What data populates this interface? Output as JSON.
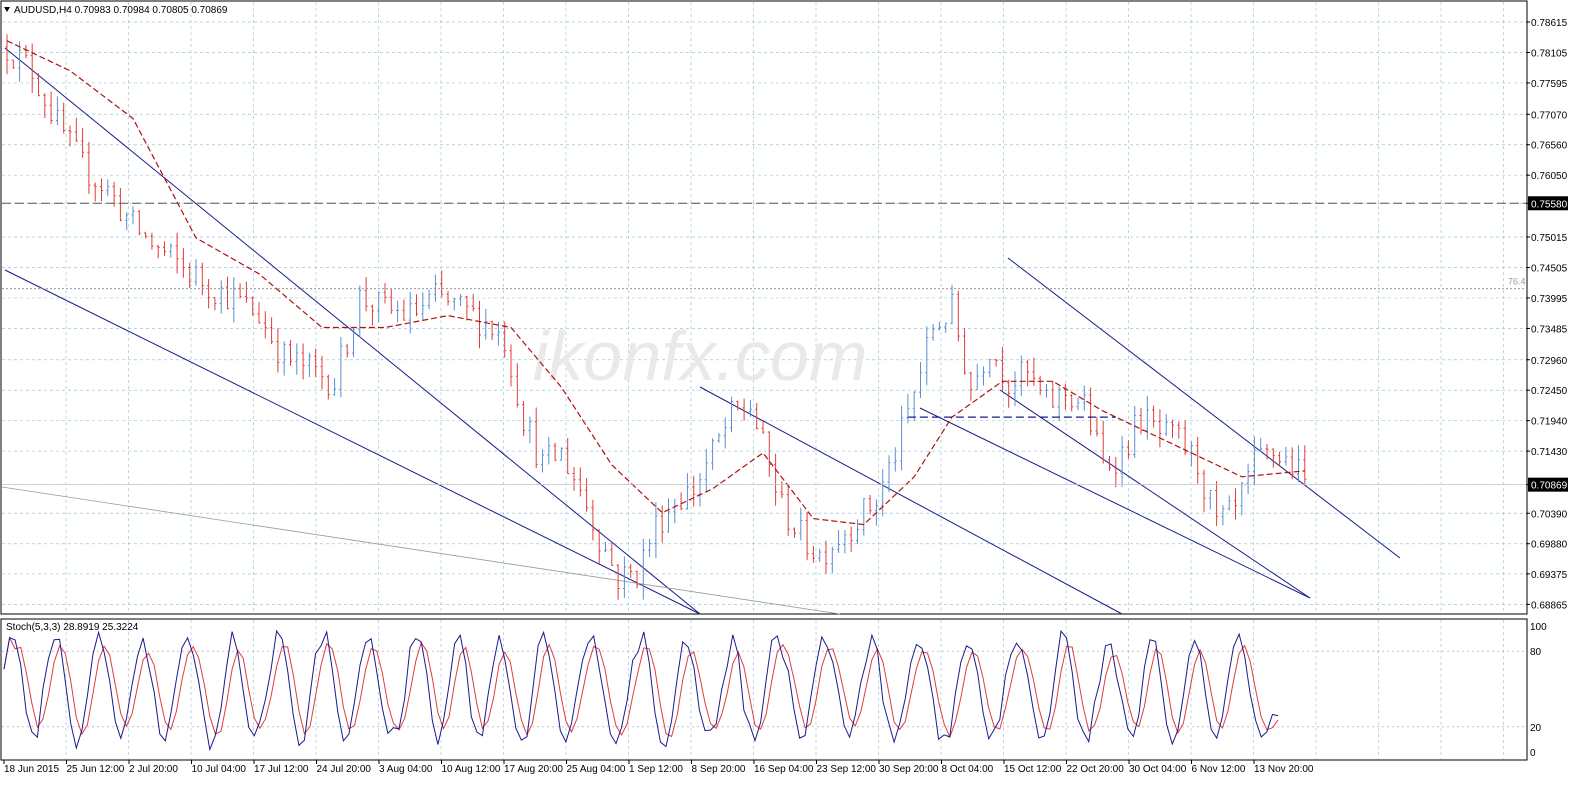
{
  "header": {
    "symbol_line": "AUDUSD,H4  0.70983 0.70984 0.70805 0.70869",
    "menu_icon": "triangle-down-icon"
  },
  "stoch_header": "Stoch(5,3,3) 28.8919 25.3224",
  "watermark": "ikonfx.com",
  "colors": {
    "bull": "#5b8fd0",
    "bear": "#e03c3c",
    "ma": "#b01010",
    "channel": "#1a1a8c",
    "grid": "#9bc9d9",
    "stoch_main": "#1a1a8c",
    "stoch_signal": "#e03c3c",
    "axis": "#000000",
    "price_tag_bg": "#000000",
    "price_tag_fg": "#ffffff"
  },
  "chart_data": {
    "type": "candlestick",
    "symbol": "AUDUSD",
    "timeframe": "H4",
    "ohlc_last": {
      "open": 0.70983,
      "high": 0.70984,
      "low": 0.70805,
      "close": 0.70869
    },
    "ylim": [
      0.6872,
      0.7895
    ],
    "y_ticks": [
      "0.78615",
      "0.78105",
      "0.77595",
      "0.77070",
      "0.76560",
      "0.76050",
      "0.75580",
      "0.75015",
      "0.74505",
      "0.73995",
      "0.73485",
      "0.72960",
      "0.72450",
      "0.71940",
      "0.71430",
      "0.70869",
      "0.70390",
      "0.69880",
      "0.69375",
      "0.68865"
    ],
    "x_ticks": [
      "18 Jun 2015",
      "25 Jun 12:00",
      "2 Jul 20:00",
      "10 Jul 04:00",
      "17 Jul 12:00",
      "24 Jul 20:00",
      "3 Aug 04:00",
      "10 Aug 12:00",
      "17 Aug 20:00",
      "25 Aug 04:00",
      "1 Sep 12:00",
      "8 Sep 20:00",
      "16 Sep 04:00",
      "23 Sep 12:00",
      "30 Sep 20:00",
      "8 Oct 04:00",
      "15 Oct 12:00",
      "22 Oct 20:00",
      "30 Oct 04:00",
      "6 Nov 12:00",
      "13 Nov 20:00"
    ],
    "current_price": "0.70869",
    "marked_level": "0.75580",
    "fib_label": "76.4",
    "fib_level": 0.7415,
    "close_path": [
      [
        0,
        0.782
      ],
      [
        4,
        0.778
      ],
      [
        8,
        0.769
      ],
      [
        12,
        0.762
      ],
      [
        16,
        0.758
      ],
      [
        20,
        0.752
      ],
      [
        24,
        0.748
      ],
      [
        28,
        0.745
      ],
      [
        32,
        0.742
      ],
      [
        36,
        0.74
      ],
      [
        40,
        0.737
      ],
      [
        44,
        0.73
      ],
      [
        48,
        0.728
      ],
      [
        52,
        0.726
      ],
      [
        56,
        0.74
      ],
      [
        60,
        0.738
      ],
      [
        64,
        0.737
      ],
      [
        68,
        0.74
      ],
      [
        72,
        0.738
      ],
      [
        76,
        0.736
      ],
      [
        79,
        0.733
      ],
      [
        82,
        0.72
      ],
      [
        85,
        0.712
      ],
      [
        88,
        0.714
      ],
      [
        91,
        0.708
      ],
      [
        94,
        0.7
      ],
      [
        97,
        0.693
      ],
      [
        100,
        0.694
      ],
      [
        103,
        0.702
      ],
      [
        106,
        0.706
      ],
      [
        109,
        0.708
      ],
      [
        112,
        0.714
      ],
      [
        115,
        0.72
      ],
      [
        118,
        0.722
      ],
      [
        120,
        0.715
      ],
      [
        123,
        0.705
      ],
      [
        126,
        0.7
      ],
      [
        129,
        0.697
      ],
      [
        132,
        0.7
      ],
      [
        135,
        0.703
      ],
      [
        138,
        0.706
      ],
      [
        141,
        0.714
      ],
      [
        144,
        0.724
      ],
      [
        147,
        0.735
      ],
      [
        150,
        0.738
      ],
      [
        153,
        0.725
      ],
      [
        156,
        0.732
      ],
      [
        159,
        0.726
      ],
      [
        162,
        0.727
      ],
      [
        165,
        0.722
      ],
      [
        168,
        0.724
      ],
      [
        171,
        0.722
      ],
      [
        174,
        0.712
      ],
      [
        177,
        0.714
      ],
      [
        180,
        0.72
      ],
      [
        183,
        0.717
      ],
      [
        186,
        0.716
      ],
      [
        189,
        0.712
      ],
      [
        192,
        0.702
      ],
      [
        195,
        0.704
      ],
      [
        198,
        0.712
      ],
      [
        201,
        0.714
      ],
      [
        204,
        0.712
      ],
      [
        206,
        0.709
      ]
    ],
    "ma_path": [
      [
        0,
        0.783
      ],
      [
        10,
        0.778
      ],
      [
        20,
        0.77
      ],
      [
        30,
        0.75
      ],
      [
        40,
        0.744
      ],
      [
        50,
        0.735
      ],
      [
        60,
        0.735
      ],
      [
        70,
        0.737
      ],
      [
        80,
        0.735
      ],
      [
        88,
        0.725
      ],
      [
        96,
        0.712
      ],
      [
        104,
        0.704
      ],
      [
        112,
        0.708
      ],
      [
        120,
        0.714
      ],
      [
        128,
        0.703
      ],
      [
        136,
        0.702
      ],
      [
        144,
        0.71
      ],
      [
        150,
        0.72
      ],
      [
        158,
        0.726
      ],
      [
        166,
        0.726
      ],
      [
        174,
        0.721
      ],
      [
        182,
        0.717
      ],
      [
        190,
        0.713
      ],
      [
        196,
        0.71
      ],
      [
        206,
        0.711
      ]
    ],
    "channels": [
      {
        "name": "upper-1",
        "p1": [
          0,
          0.7835
        ],
        "p2": [
          104,
          0.6885
        ]
      },
      {
        "name": "lower-1",
        "p1": [
          0,
          0.746
        ],
        "p2": [
          104,
          0.6885
        ]
      },
      {
        "name": "upper-2",
        "p1": [
          138,
          0.7232
        ],
        "p2": [
          185,
          0.6888
        ]
      },
      {
        "name": "lower-2",
        "p1": [
          138,
          0.7232
        ],
        "p2": [
          205,
          0.698
        ]
      },
      {
        "name": "upper-3",
        "p1": [
          155,
          0.7355
        ],
        "p2": [
          225,
          0.702
        ]
      },
      {
        "name": "lower-3",
        "p1": [
          155,
          0.72
        ],
        "p2": [
          215,
          0.6928
        ]
      }
    ],
    "support_segment": {
      "x1": 143,
      "x2": 176,
      "y": 0.72
    },
    "stoch": {
      "type": "line",
      "k_period": 5,
      "d_period": 3,
      "slowing": 3,
      "main": 28.8919,
      "signal": 25.3224,
      "ylim": [
        0,
        100
      ],
      "levels": [
        20,
        80
      ],
      "y_ticks": [
        "100",
        "80",
        "20",
        "0"
      ]
    }
  }
}
